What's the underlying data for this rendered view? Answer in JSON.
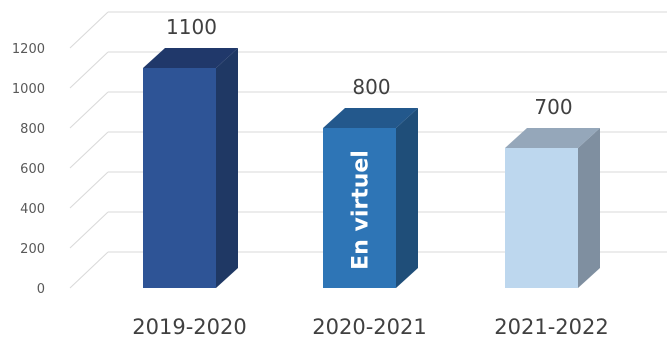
{
  "chart_data": {
    "type": "bar",
    "style": "3d-column",
    "categories": [
      "2019-2020",
      "2020-2021",
      "2021-2022"
    ],
    "values": [
      1100,
      800,
      700
    ],
    "data_labels": [
      "1100",
      "800",
      "700"
    ],
    "bar_annotations": [
      "",
      "En virtuel",
      ""
    ],
    "bar_colors": [
      {
        "front": "#2E5496",
        "side": "#1F3864",
        "top": "#20386A"
      },
      {
        "front": "#2E75B6",
        "side": "#1F4E79",
        "top": "#23588C"
      },
      {
        "front": "#BDD7EE",
        "side": "#7F8FA0",
        "top": "#95A7BA"
      }
    ],
    "y_ticks": [
      "0",
      "200",
      "400",
      "600",
      "800",
      "1000",
      "1200"
    ],
    "ylim": [
      0,
      1200
    ],
    "grid": true,
    "legend": "none",
    "title": "",
    "xlabel": "",
    "ylabel": ""
  }
}
